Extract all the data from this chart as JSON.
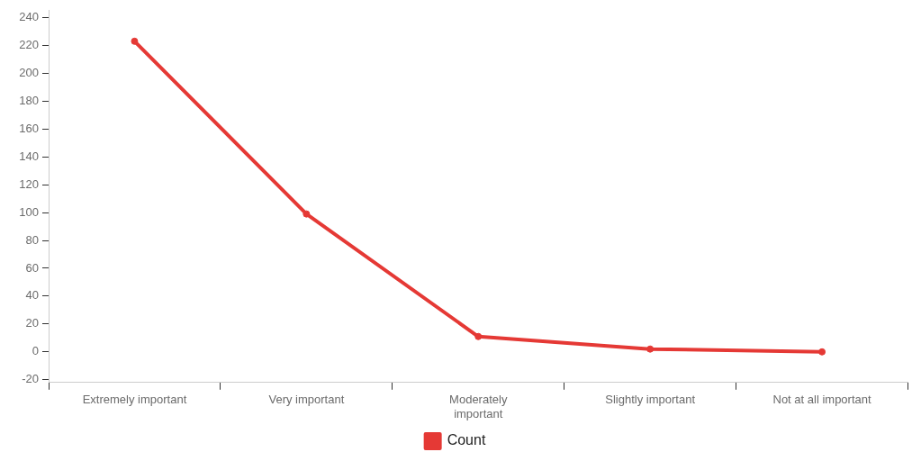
{
  "chart_data": {
    "type": "line",
    "categories": [
      "Extremely important",
      "Very important",
      "Moderately important",
      "Slightly important",
      "Not at all important"
    ],
    "series": [
      {
        "name": "Count",
        "color": "#e53935",
        "values": [
          223,
          99,
          11,
          2,
          0
        ]
      }
    ],
    "ylim": [
      -22,
      245
    ],
    "yticks": [
      -20,
      0,
      20,
      40,
      60,
      80,
      100,
      120,
      140,
      160,
      180,
      200,
      220,
      240
    ],
    "legend": "bottom",
    "marker": "circle",
    "line_style": "solid"
  }
}
